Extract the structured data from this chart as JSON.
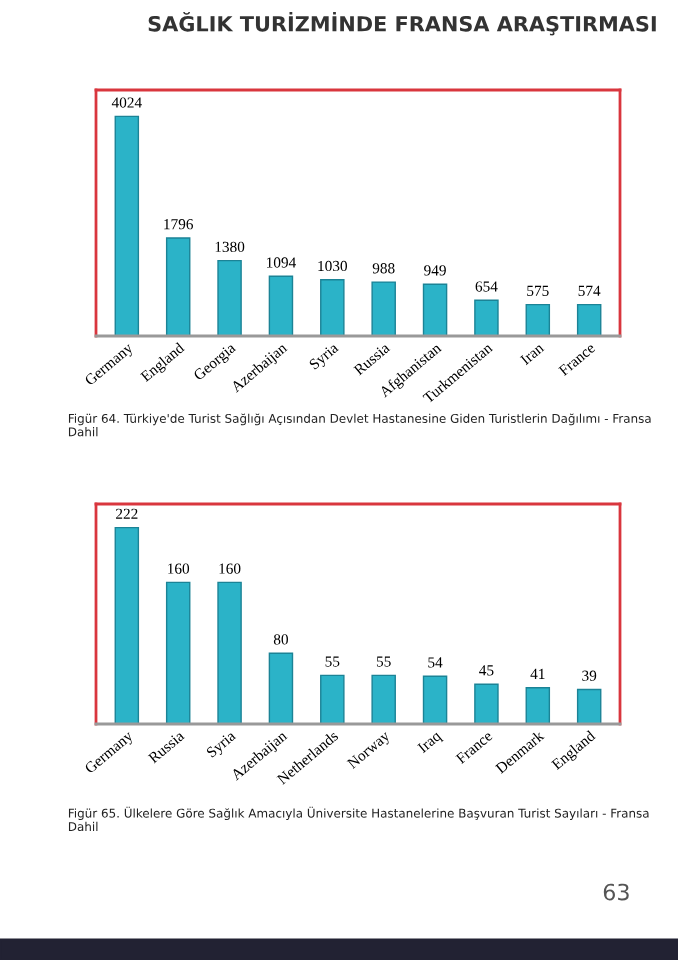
{
  "chart_data": [
    {
      "type": "bar",
      "categories": [
        "Germany",
        "England",
        "Georgia",
        "Azerbaijan",
        "Syria",
        "Russia",
        "Afghanistan",
        "Turkmenistan",
        "Iran",
        "France"
      ],
      "values": [
        4024,
        1796,
        1380,
        1094,
        1030,
        988,
        949,
        654,
        575,
        574
      ],
      "color": "#2bb3c8",
      "data_labels": true,
      "grid": false,
      "annotations": [
        "SAĞLIK TURİZMİNDE FRANSA ARAŞTIRMASI",
        "Figür 64. Türkiye'de Turist Sağlığı Açısından Devlet Hastanesine Giden Turistlerin Dağılımı - Fransa Dahil"
      ]
    },
    {
      "type": "bar",
      "categories": [
        "Germany",
        "Russia",
        "Syria",
        "Azerbaijan",
        "Netherlands",
        "Norway",
        "Iraq",
        "France",
        "Denmark",
        "England"
      ],
      "values": [
        222,
        160,
        160,
        80,
        55,
        55,
        54,
        45,
        41,
        39
      ],
      "color": "#2bb3c8",
      "data_labels": true,
      "grid": false,
      "annotations": [
        "Figür 65. Ülkelere Göre Sağlık Amacıyla Üniversite Hastanelerine Başvuran Turist Sayıları - Fransa Dahil",
        "63"
      ]
    }
  ]
}
